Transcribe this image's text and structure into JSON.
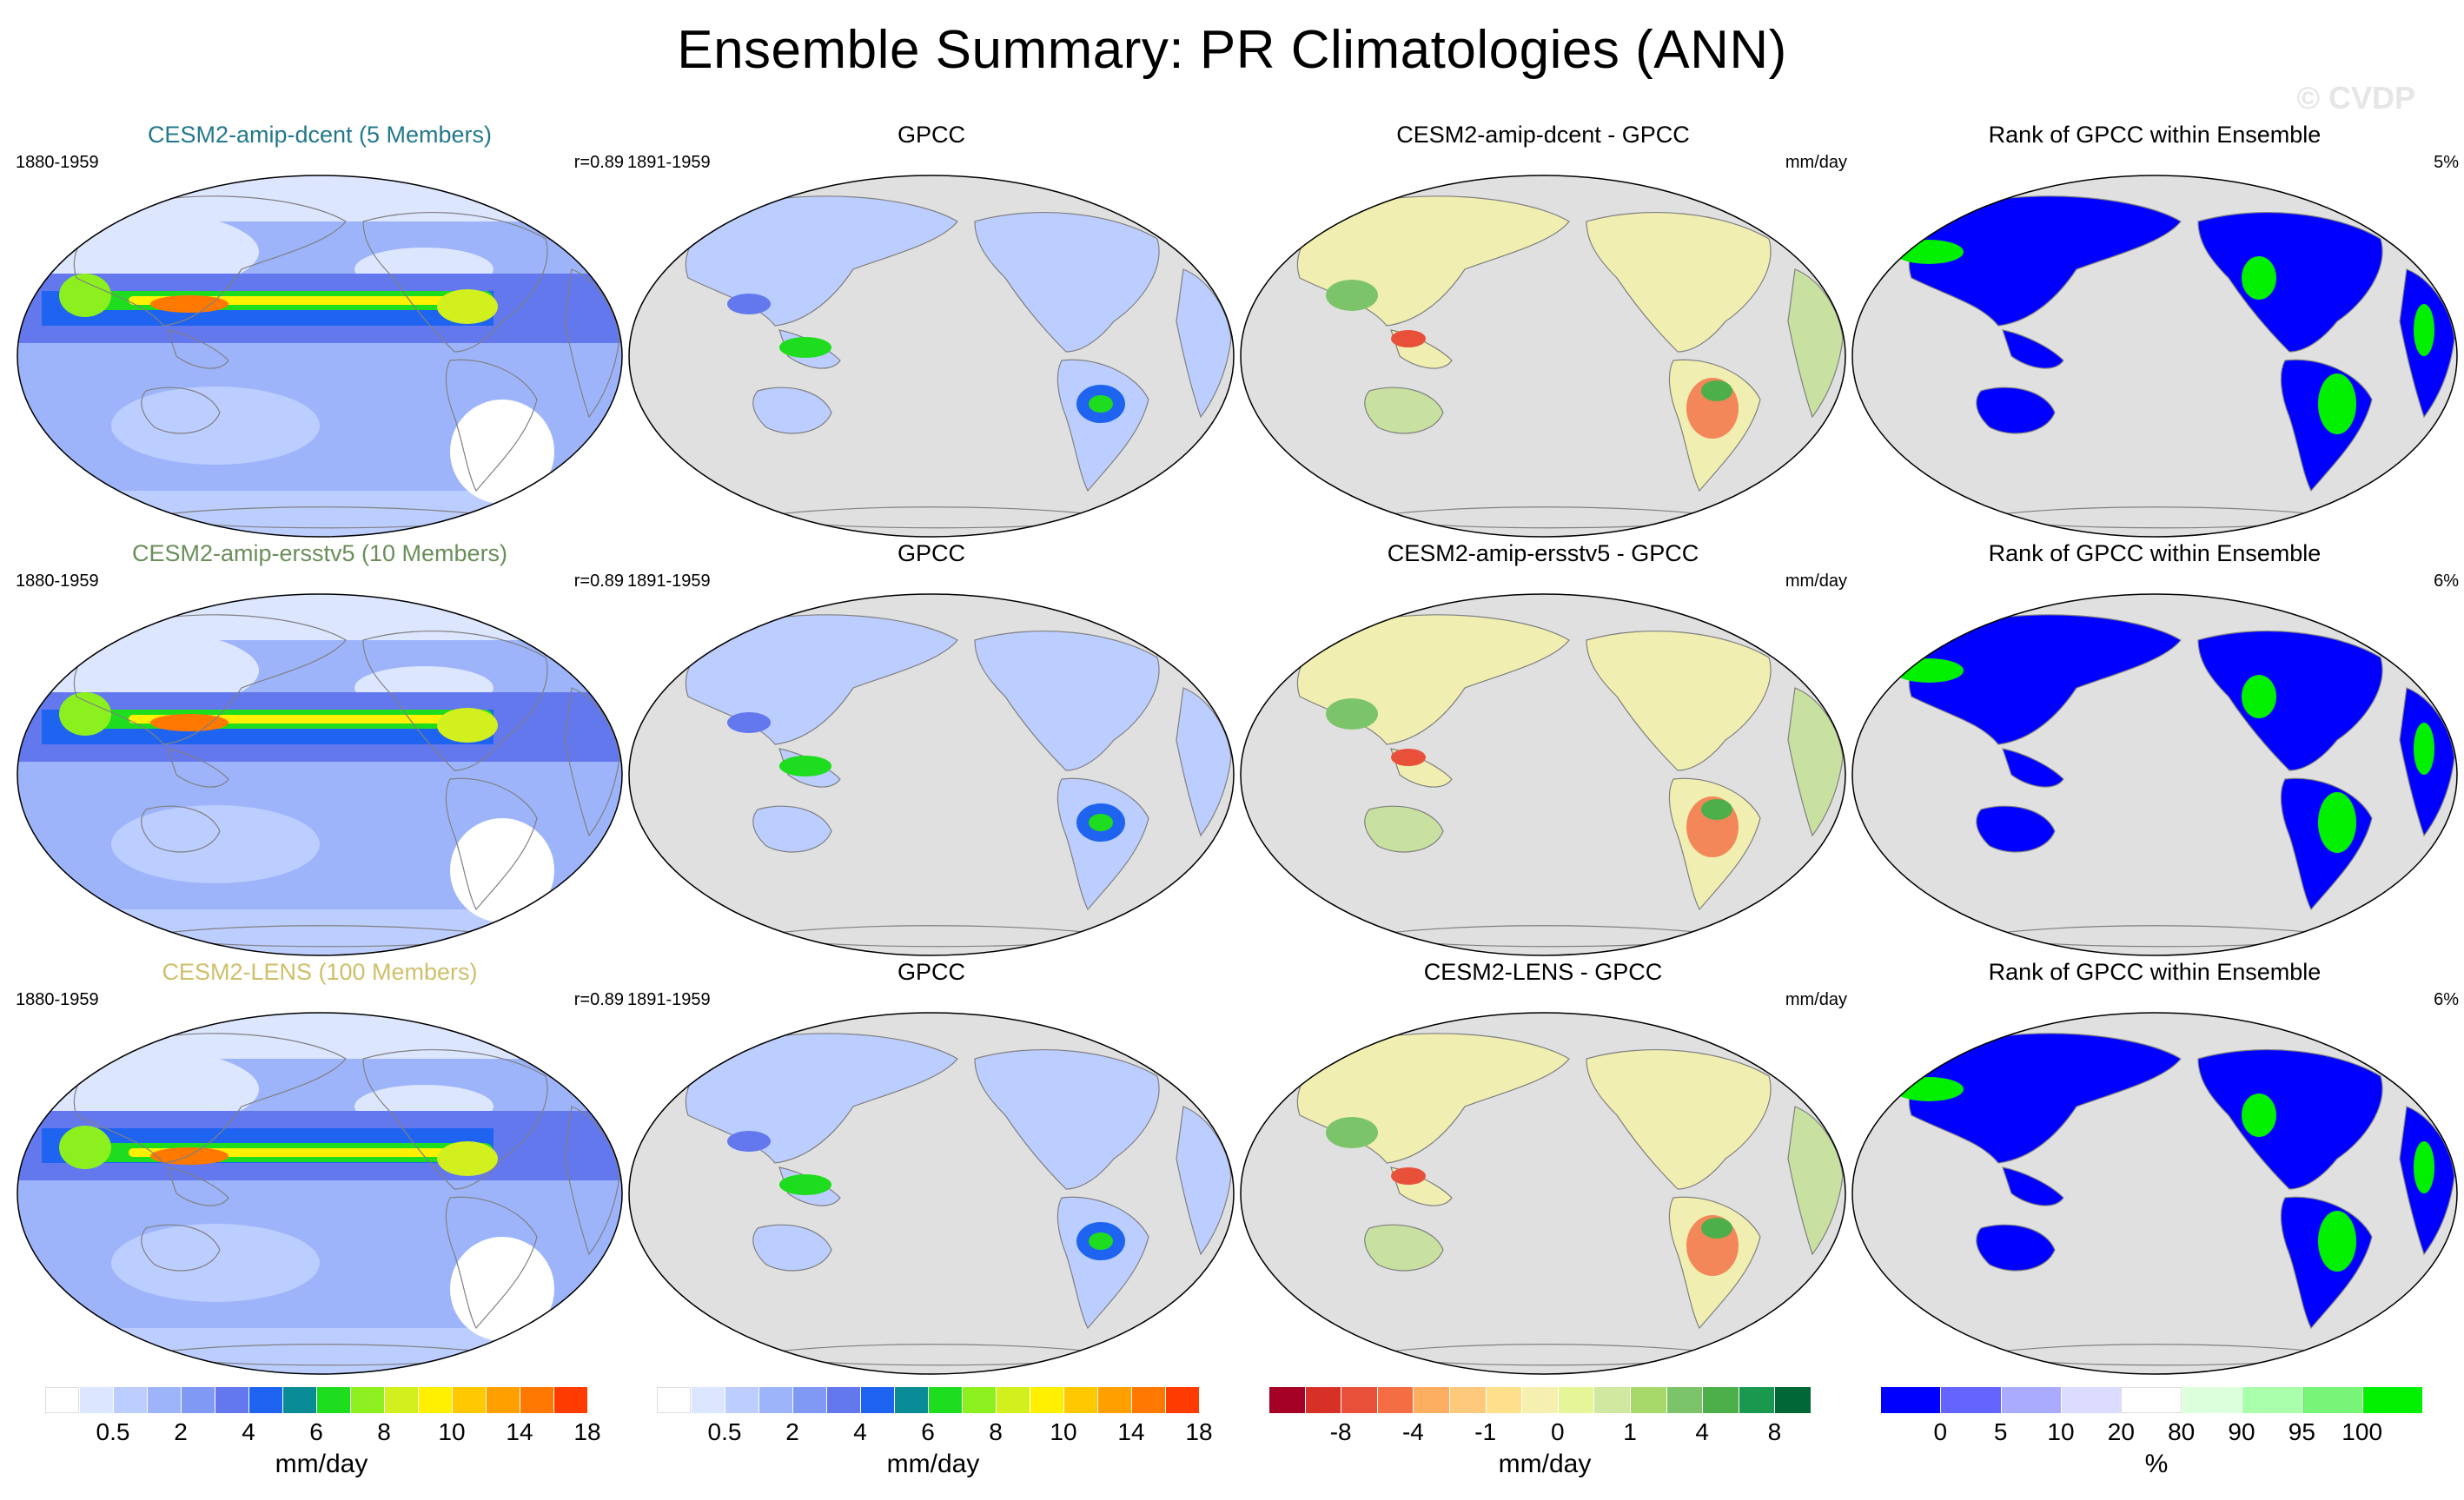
{
  "title": "Ensemble Summary: PR Climatologies (ANN)",
  "watermark": "© CVDP",
  "rows": [
    {
      "ens": {
        "title": "CESM2-amip-dcent (5 Members)",
        "title_color": "#23788b",
        "years": "1880-1959",
        "r": "r=0.89"
      },
      "obs": {
        "title": "GPCC",
        "years": "1891-1959"
      },
      "diff": {
        "title": "CESM2-amip-dcent - GPCC",
        "units": "mm/day"
      },
      "rank": {
        "title": "Rank of GPCC within Ensemble",
        "pct": "5%"
      }
    },
    {
      "ens": {
        "title": "CESM2-amip-ersstv5 (10 Members)",
        "title_color": "#6a8f5a",
        "years": "1880-1959",
        "r": "r=0.89"
      },
      "obs": {
        "title": "GPCC",
        "years": "1891-1959"
      },
      "diff": {
        "title": "CESM2-amip-ersstv5 - GPCC",
        "units": "mm/day"
      },
      "rank": {
        "title": "Rank of GPCC within Ensemble",
        "pct": "6%"
      }
    },
    {
      "ens": {
        "title": "CESM2-LENS (100 Members)",
        "title_color": "#cfbf6a",
        "years": "1880-1959",
        "r": "r=0.89"
      },
      "obs": {
        "title": "GPCC",
        "years": "1891-1959"
      },
      "diff": {
        "title": "CESM2-LENS - GPCC",
        "units": "mm/day"
      },
      "rank": {
        "title": "Rank of GPCC within Ensemble",
        "pct": "6%"
      }
    }
  ],
  "colorbars": [
    {
      "colors": [
        "#ffffff",
        "#dde6ff",
        "#bccdff",
        "#9db4fb",
        "#8099f5",
        "#6478ee",
        "#1e64f0",
        "#0a8c96",
        "#1edc1e",
        "#8cf01e",
        "#d2f01e",
        "#fff000",
        "#ffc800",
        "#ffa000",
        "#ff7800",
        "#ff3c00"
      ],
      "ticks": [
        "0.5",
        "2",
        "4",
        "6",
        "8",
        "10",
        "14",
        "18"
      ],
      "tick_after_box": [
        1,
        3,
        5,
        7,
        9,
        11,
        13,
        15
      ],
      "units": "mm/day"
    },
    {
      "colors": [
        "#ffffff",
        "#dde6ff",
        "#bccdff",
        "#9db4fb",
        "#8099f5",
        "#6478ee",
        "#1e64f0",
        "#0a8c96",
        "#1edc1e",
        "#8cf01e",
        "#d2f01e",
        "#fff000",
        "#ffc800",
        "#ffa000",
        "#ff7800",
        "#ff3c00"
      ],
      "ticks": [
        "0.5",
        "2",
        "4",
        "6",
        "8",
        "10",
        "14",
        "18"
      ],
      "tick_after_box": [
        1,
        3,
        5,
        7,
        9,
        11,
        13,
        15
      ],
      "units": "mm/day"
    },
    {
      "colors": [
        "#a50026",
        "#d73027",
        "#e8503a",
        "#f46d43",
        "#fdae61",
        "#fdc97c",
        "#fee08b",
        "#f5f0b0",
        "#e6f598",
        "#d0e8a0",
        "#a6d96a",
        "#7cc46a",
        "#4daf4a",
        "#1a9850",
        "#006837"
      ],
      "ticks": [
        "-8",
        "-4",
        "-1",
        "0",
        "1",
        "4",
        "8"
      ],
      "tick_after_box": [
        1,
        3,
        5,
        7,
        9,
        11,
        13
      ],
      "units": "mm/day"
    },
    {
      "colors": [
        "#0000ff",
        "#6464ff",
        "#aaaaff",
        "#dcdcff",
        "#ffffff",
        "#dcffdc",
        "#aaffaa",
        "#78f578",
        "#00f000"
      ],
      "ticks": [
        "0",
        "5",
        "10",
        "20",
        "80",
        "90",
        "95",
        "100"
      ],
      "tick_after_box": [
        0,
        1,
        2,
        3,
        4,
        5,
        6,
        7
      ],
      "units": "%"
    }
  ]
}
